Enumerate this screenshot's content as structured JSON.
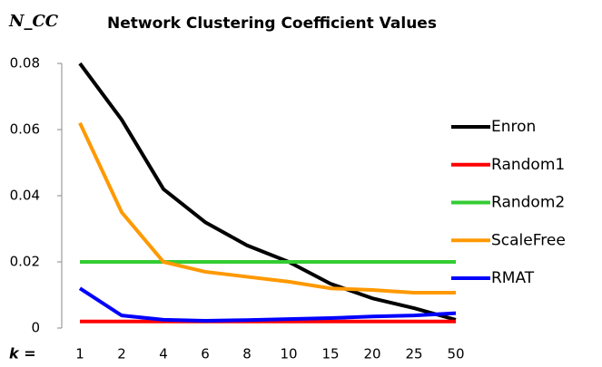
{
  "chart_data": {
    "type": "line",
    "title": "Network Clustering Coefficient Values",
    "y_label": "N_CC",
    "x_label": "k =",
    "categories": [
      "1",
      "2",
      "4",
      "6",
      "8",
      "10",
      "15",
      "20",
      "25",
      "50"
    ],
    "series": [
      {
        "name": "Enron",
        "color": "#000000",
        "values": [
          0.08,
          0.063,
          0.042,
          0.032,
          0.025,
          0.02,
          0.0134,
          0.009,
          0.006,
          0.0025
        ]
      },
      {
        "name": "Random1",
        "color": "#ff0000",
        "values": [
          0.002,
          0.002,
          0.002,
          0.002,
          0.002,
          0.002,
          0.002,
          0.002,
          0.002,
          0.002
        ]
      },
      {
        "name": "Random2",
        "color": "#33cc33",
        "values": [
          0.02,
          0.02,
          0.02,
          0.02,
          0.02,
          0.02,
          0.02,
          0.02,
          0.02,
          0.02
        ]
      },
      {
        "name": "ScaleFree",
        "color": "#ff9900",
        "values": [
          0.062,
          0.035,
          0.02,
          0.017,
          0.0155,
          0.014,
          0.012,
          0.0115,
          0.0107,
          0.0107
        ]
      },
      {
        "name": "RMAT",
        "color": "#0000ff",
        "values": [
          0.012,
          0.0038,
          0.0025,
          0.0022,
          0.0024,
          0.0027,
          0.003,
          0.0035,
          0.0038,
          0.0045
        ]
      }
    ],
    "ylim": [
      0,
      0.08
    ],
    "yticks": [
      0,
      0.02,
      0.04,
      0.06,
      0.08
    ],
    "legend": "right"
  }
}
